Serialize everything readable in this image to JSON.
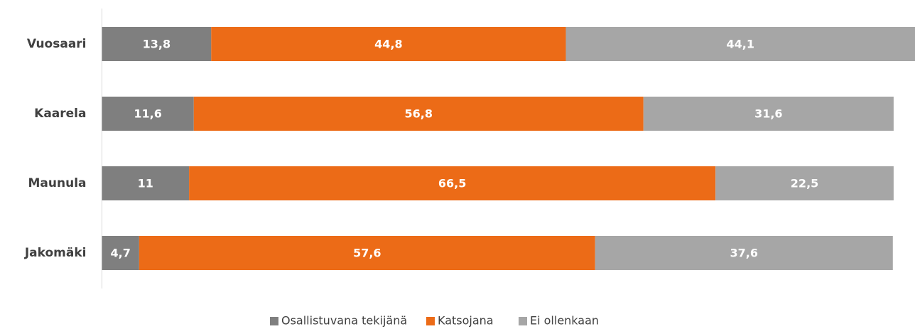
{
  "chart_data": {
    "type": "stacked_bar_horizontal",
    "categories": [
      "Vuosaari",
      "Kaarela",
      "Maunula",
      "Jakomäki"
    ],
    "series": [
      {
        "name": "Osallistuvana tekijänä",
        "color": "#7f7f7f",
        "values": [
          13.8,
          11.6,
          11,
          4.7
        ],
        "value_labels": [
          "13,8",
          "11,6",
          "11",
          "4,7"
        ]
      },
      {
        "name": "Katsojana",
        "color": "#ec6b17",
        "values": [
          44.8,
          56.8,
          66.5,
          57.6
        ],
        "value_labels": [
          "44,8",
          "56,8",
          "66,5",
          "57,6"
        ]
      },
      {
        "name": "Ei ollenkaan",
        "color": "#a6a6a6",
        "values": [
          44.1,
          31.6,
          22.5,
          37.6
        ],
        "value_labels": [
          "44,1",
          "31,6",
          "22,5",
          "37,6"
        ]
      }
    ],
    "legend": "bottom"
  }
}
